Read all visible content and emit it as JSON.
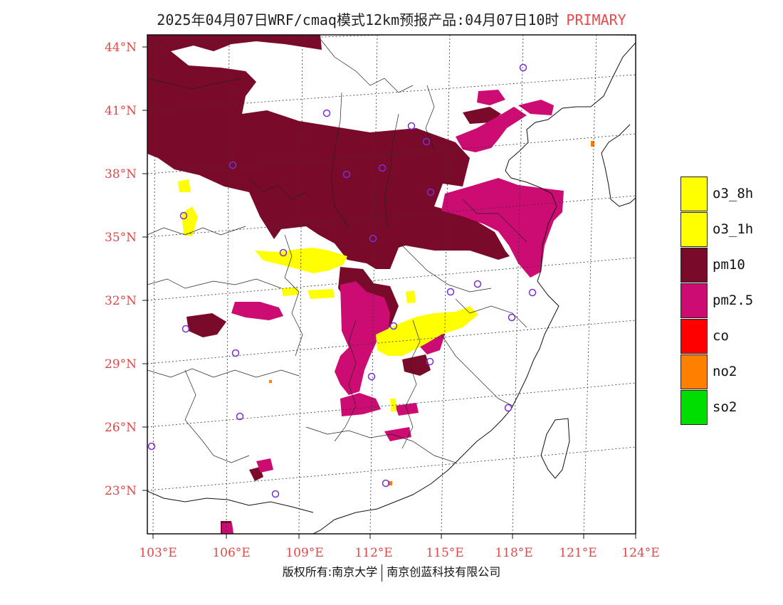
{
  "title": {
    "main": "2025年04月07日WRF/cmaq模式12km预报产品:04月07日10时",
    "tag": "PRIMARY"
  },
  "map": {
    "lat_labels": [
      "44°N",
      "41°N",
      "38°N",
      "35°N",
      "32°N",
      "29°N",
      "26°N",
      "23°N"
    ],
    "lon_labels": [
      "103°E",
      "106°E",
      "109°E",
      "112°E",
      "115°E",
      "118°E",
      "121°E",
      "124°E"
    ],
    "pollutant_colors": {
      "pm10": "#7a0a2a",
      "pm25": "#cc0c72",
      "o3": "#ffff00",
      "no2": "#ff7f00",
      "station": "#7b2fd6"
    }
  },
  "legend": {
    "items": [
      {
        "label": "o3_8h",
        "color": "#ffff00"
      },
      {
        "label": "o3_1h",
        "color": "#ffff00"
      },
      {
        "label": "pm10",
        "color": "#7a0a2a"
      },
      {
        "label": "pm2.5",
        "color": "#cc0c72"
      },
      {
        "label": "co",
        "color": "#ff0000"
      },
      {
        "label": "no2",
        "color": "#ff7f00"
      },
      {
        "label": "so2",
        "color": "#00dd00"
      }
    ]
  },
  "footer": {
    "left": "版权所有:南京大学",
    "right": "南京创蓝科技有限公司"
  }
}
